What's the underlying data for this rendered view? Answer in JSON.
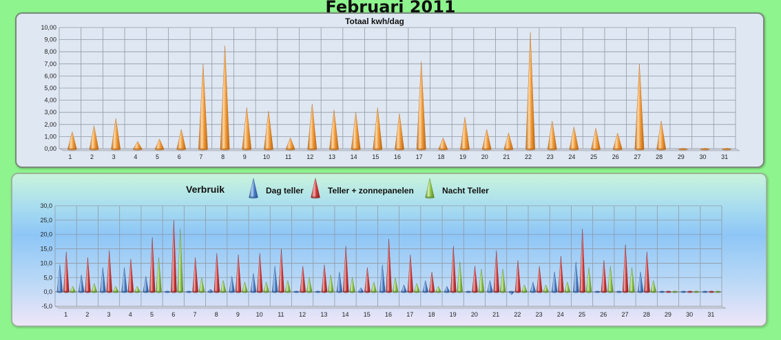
{
  "page": {
    "title": "Februari 2011"
  },
  "chart_data": [
    {
      "type": "bar",
      "style": "3d-cone",
      "title": "Totaal kwh/dag",
      "xlabel": "",
      "ylabel": "",
      "categories": [
        "1",
        "2",
        "3",
        "4",
        "5",
        "6",
        "7",
        "8",
        "9",
        "10",
        "11",
        "12",
        "13",
        "14",
        "15",
        "16",
        "17",
        "18",
        "19",
        "20",
        "21",
        "22",
        "23",
        "24",
        "25",
        "26",
        "27",
        "28",
        "29",
        "30",
        "31"
      ],
      "values": [
        1.4,
        1.9,
        2.5,
        0.6,
        0.8,
        1.6,
        7.0,
        8.5,
        3.4,
        3.1,
        0.9,
        3.7,
        3.2,
        3.0,
        3.4,
        2.9,
        7.2,
        0.9,
        2.6,
        1.6,
        1.3,
        9.6,
        2.3,
        1.8,
        1.7,
        1.3,
        7.0,
        2.3,
        0.05,
        0.05,
        0.05
      ],
      "ylim": [
        0,
        10
      ],
      "yticks": [
        "0,00",
        "1,00",
        "2,00",
        "3,00",
        "4,00",
        "5,00",
        "6,00",
        "7,00",
        "8,00",
        "9,00",
        "10,00"
      ],
      "grid": true,
      "colors": {
        "cone": "#f09a3a",
        "cone_light": "#ffd9a6",
        "cone_dark": "#b8620f"
      }
    },
    {
      "type": "bar",
      "style": "3d-cone",
      "title": "Verbruik",
      "xlabel": "",
      "ylabel": "",
      "categories": [
        "1",
        "2",
        "3",
        "4",
        "5",
        "6",
        "7",
        "8",
        "9",
        "10",
        "11",
        "12",
        "13",
        "14",
        "15",
        "16",
        "17",
        "18",
        "19",
        "20",
        "21",
        "22",
        "23",
        "24",
        "25",
        "26",
        "27",
        "28",
        "29",
        "30",
        "31"
      ],
      "ylim": [
        -5,
        30
      ],
      "yticks": [
        "-5,0",
        "0,0",
        "5,0",
        "10,0",
        "15,0",
        "20,0",
        "25,0",
        "30,0"
      ],
      "grid": true,
      "legend_position": "top",
      "series": [
        {
          "name": "Dag teller",
          "color": "#4a7ec4",
          "light": "#b9d2f2",
          "dark": "#23508f",
          "values": [
            9.5,
            6.0,
            8.5,
            8.5,
            5.5,
            0.3,
            0.3,
            1.0,
            5.5,
            6.5,
            9.0,
            0.3,
            0.3,
            7.0,
            1.5,
            9.5,
            2.5,
            4.0,
            2.0,
            0.3,
            4.0,
            -1.0,
            3.5,
            7.0,
            10.5,
            0.3,
            0.3,
            7.0,
            0.3,
            0.3,
            0.3
          ]
        },
        {
          "name": "Teller + zonnepanelen",
          "color": "#cf3b3b",
          "light": "#f4b3b3",
          "dark": "#8c1c1c",
          "values": [
            14.0,
            12.0,
            14.5,
            11.5,
            19.0,
            25.0,
            12.0,
            13.5,
            13.0,
            13.5,
            15.0,
            9.0,
            9.5,
            16.0,
            8.5,
            18.5,
            13.0,
            7.0,
            16.0,
            9.0,
            14.5,
            11.0,
            9.0,
            12.5,
            22.0,
            11.0,
            16.5,
            14.0,
            0.3,
            0.3,
            0.3
          ]
        },
        {
          "name": "Nacht Teller",
          "color": "#8cc34a",
          "light": "#d6efb4",
          "dark": "#55821f",
          "values": [
            2.0,
            3.0,
            2.0,
            2.0,
            12.0,
            22.0,
            5.0,
            4.0,
            3.5,
            3.5,
            4.0,
            5.0,
            6.0,
            5.0,
            3.5,
            5.0,
            3.0,
            2.0,
            10.5,
            8.0,
            8.0,
            2.5,
            2.5,
            3.5,
            8.5,
            9.0,
            8.5,
            4.0,
            0.3,
            0.3,
            0.3
          ]
        }
      ]
    }
  ]
}
